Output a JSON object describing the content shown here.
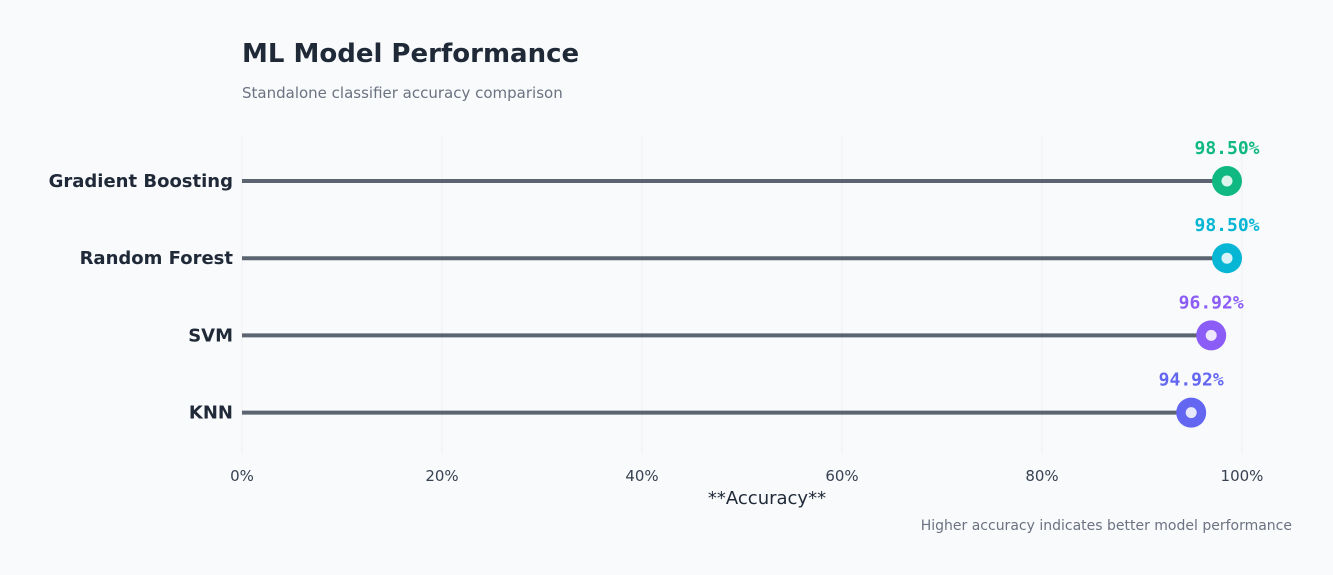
{
  "chart_data": {
    "type": "lollipop",
    "title": "ML Model Performance",
    "subtitle": "Standalone classifier accuracy comparison",
    "xlabel": "**Accuracy**",
    "xlim": [
      0,
      100
    ],
    "x_ticks": [
      0,
      20,
      40,
      60,
      80,
      100
    ],
    "x_tick_labels": [
      "0%",
      "20%",
      "40%",
      "60%",
      "80%",
      "100%"
    ],
    "grid": true,
    "categories": [
      "Gradient Boosting",
      "Random Forest",
      "SVM",
      "KNN"
    ],
    "values": [
      98.5,
      98.5,
      96.92,
      94.92
    ],
    "value_labels": [
      "98.50%",
      "98.50%",
      "96.92%",
      "94.92%"
    ],
    "colors": [
      "#10b981",
      "#06b6d4",
      "#8b5cf6",
      "#6366f1"
    ],
    "stem_color": "#5b6470",
    "footnote": "Higher accuracy indicates better model performance"
  }
}
